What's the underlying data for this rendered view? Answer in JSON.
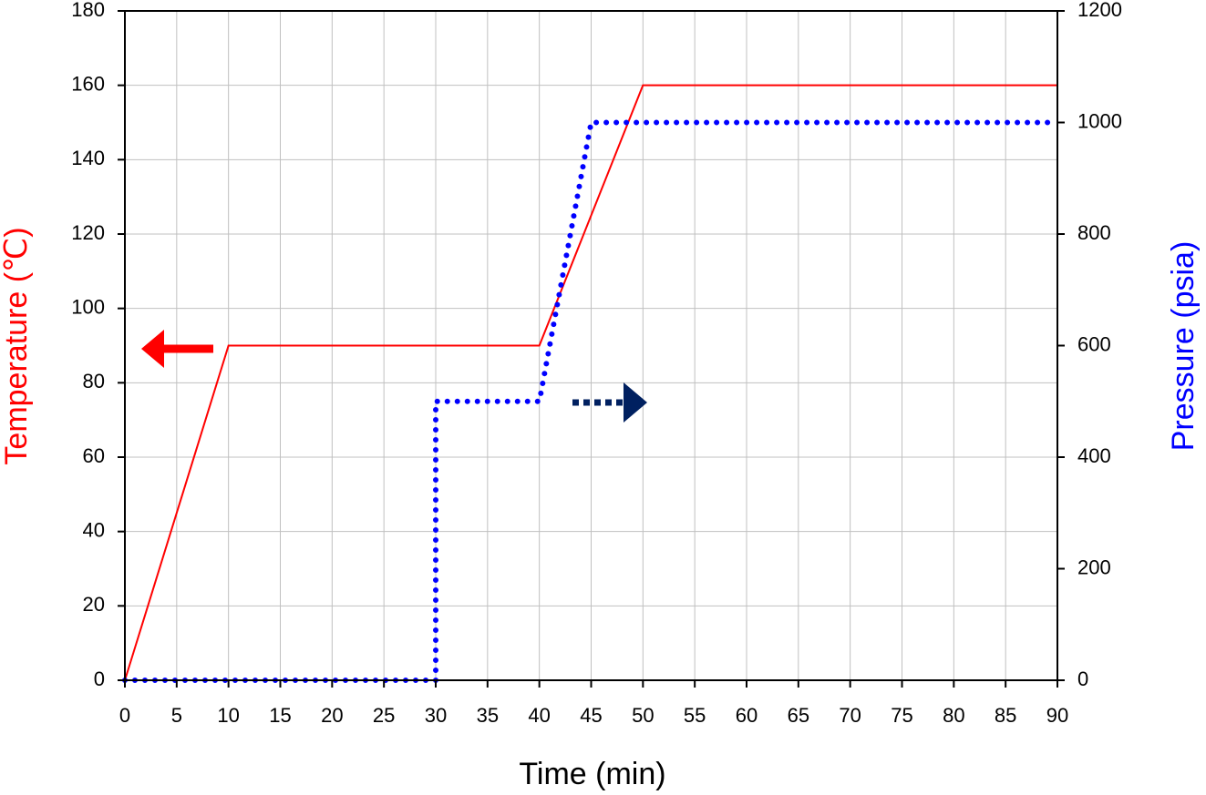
{
  "chart_data": {
    "type": "line",
    "x_label": "Time (min)",
    "y_label": "Temperature (℃)",
    "y2_label": "Pressure (psia)",
    "xlim": [
      0,
      90
    ],
    "xticks": [
      0,
      5,
      10,
      15,
      20,
      25,
      30,
      35,
      40,
      45,
      50,
      55,
      60,
      65,
      70,
      75,
      80,
      85,
      90
    ],
    "ylim": [
      0,
      180
    ],
    "yticks": [
      0,
      20,
      40,
      60,
      80,
      100,
      120,
      140,
      160,
      180
    ],
    "y2lim": [
      0,
      1200
    ],
    "y2ticks": [
      0,
      200,
      400,
      600,
      800,
      1000,
      1200
    ],
    "grid": true,
    "series": [
      {
        "name": "Temperature",
        "color": "#ff0000",
        "style": "solid",
        "x": [
          0,
          10,
          40,
          50,
          90
        ],
        "values": [
          0,
          90,
          90,
          160,
          160
        ]
      },
      {
        "name": "Pressure",
        "color": "#0000ff",
        "style": "dotted",
        "axis": "y2",
        "x": [
          0,
          30,
          30,
          40,
          45,
          90
        ],
        "values": [
          0,
          0,
          500,
          500,
          1000,
          1000
        ]
      }
    ]
  }
}
